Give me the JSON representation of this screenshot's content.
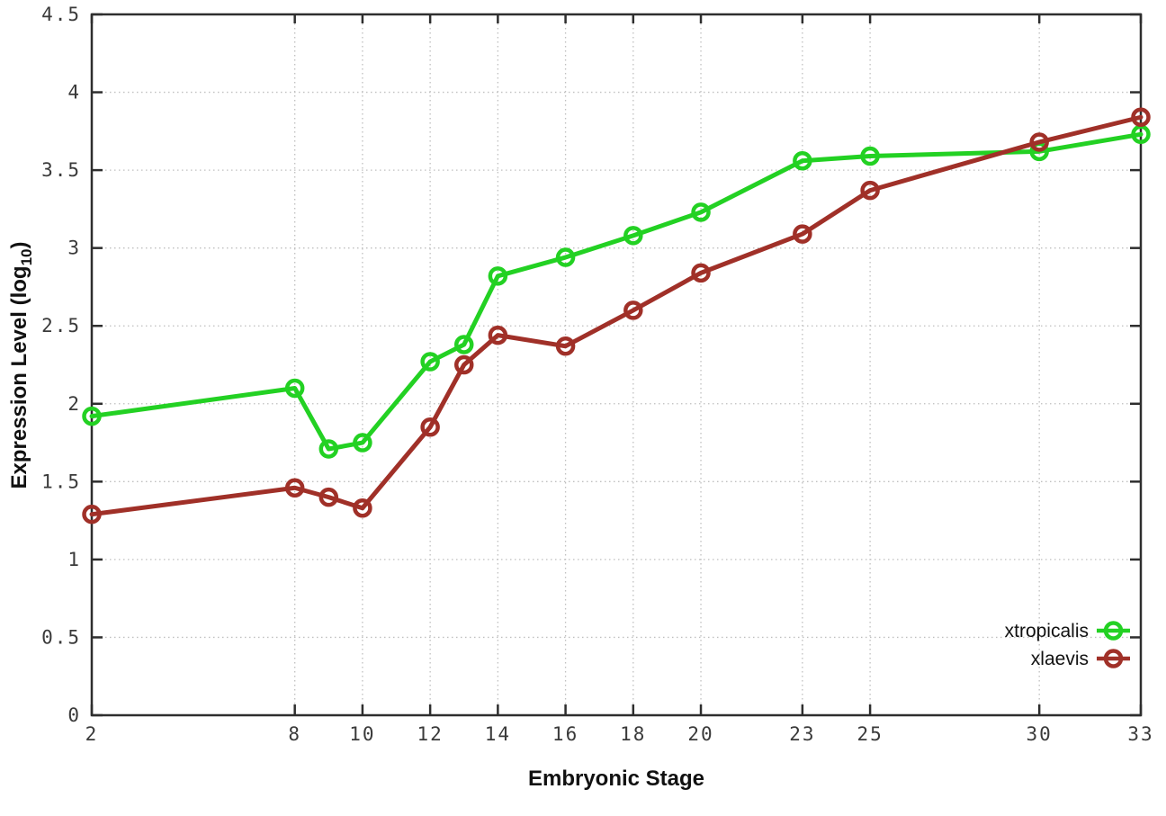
{
  "chart_data": {
    "type": "line",
    "x": [
      2,
      8,
      9,
      10,
      12,
      13,
      14,
      16,
      18,
      20,
      23,
      25,
      30,
      33
    ],
    "series": [
      {
        "name": "xtropicalis",
        "color": "#23d123",
        "values": [
          1.92,
          2.1,
          1.71,
          1.75,
          2.27,
          2.38,
          2.82,
          2.94,
          3.08,
          3.23,
          3.56,
          3.59,
          3.62,
          3.73
        ]
      },
      {
        "name": "xlaevis",
        "color": "#a03028",
        "values": [
          1.29,
          1.46,
          1.4,
          1.33,
          1.85,
          2.25,
          2.44,
          2.37,
          2.6,
          2.84,
          3.09,
          3.37,
          3.68,
          3.84
        ]
      }
    ],
    "title": "",
    "xlabel": "Embryonic Stage",
    "ylabel": "Expression Level (log10)",
    "ylabel_parts": {
      "prefix": "Expression Level (log",
      "sub": "10",
      "suffix": ")"
    },
    "xlim": [
      2,
      33
    ],
    "ylim": [
      0,
      4.5
    ],
    "xticks": [
      2,
      8,
      10,
      12,
      14,
      16,
      18,
      20,
      23,
      25,
      30,
      33
    ],
    "yticks": [
      0,
      0.5,
      1,
      1.5,
      2,
      2.5,
      3,
      3.5,
      4,
      4.5
    ],
    "ytick_labels": [
      "0",
      "0.5",
      "1",
      "1.5",
      "2",
      "2.5",
      "3",
      "3.5",
      "4",
      "4.5"
    ],
    "grid": true,
    "legend": {
      "position": "bottom-right",
      "entries": [
        "xtropicalis",
        "xlaevis"
      ]
    }
  },
  "colors": {
    "background": "#ffffff",
    "border": "#2e2e2e",
    "gridline": "#bfbfbf",
    "tick_label": "#3a3a3a",
    "xtropicalis": "#23d123",
    "xlaevis": "#a03028"
  }
}
